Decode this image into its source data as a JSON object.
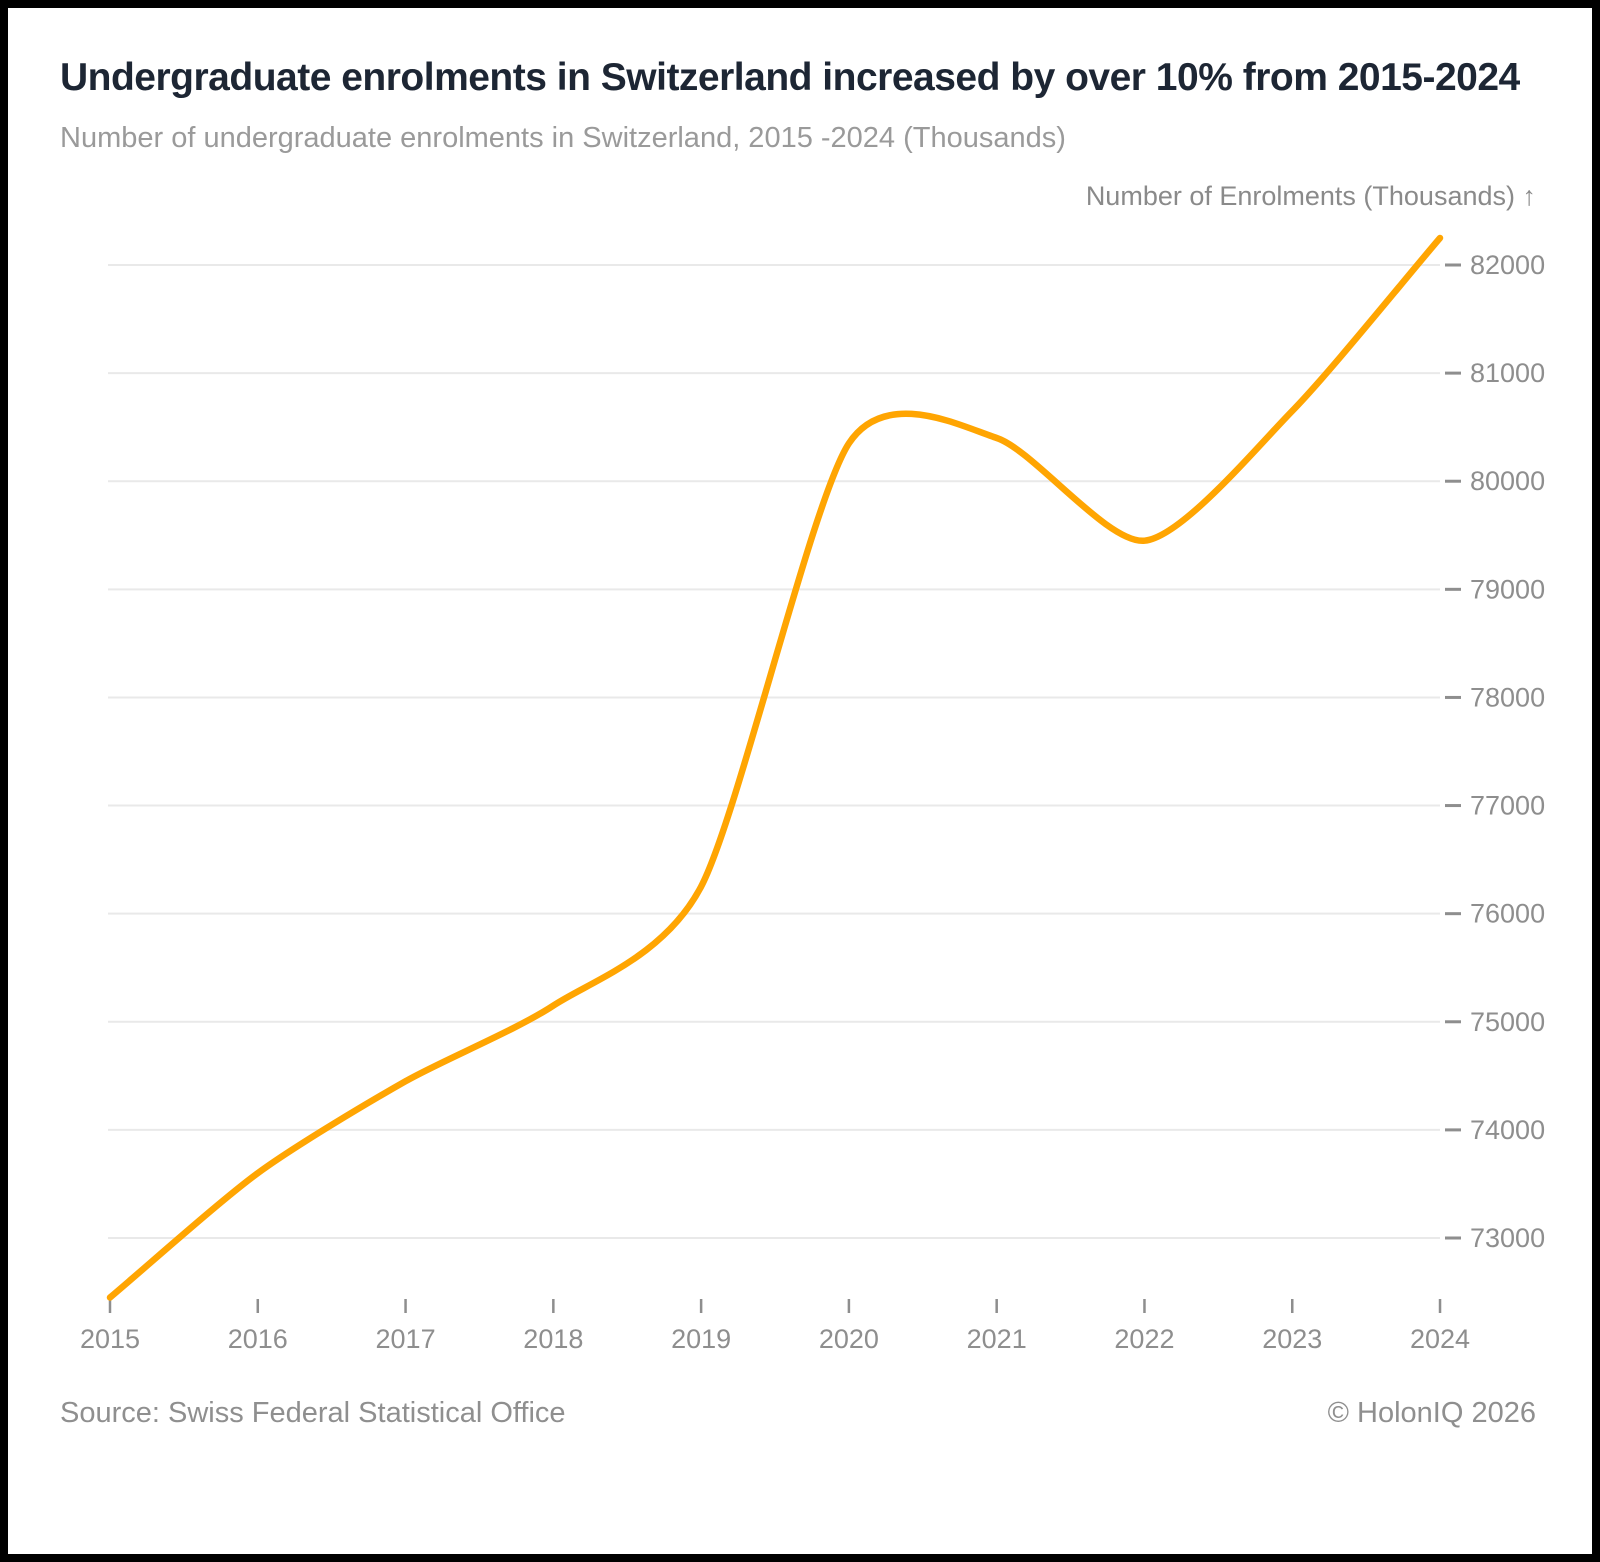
{
  "header": {
    "title": "Undergraduate enrolments in Switzerland increased by over 10% from 2015-2024",
    "subtitle": "Number of undergraduate enrolments in Switzerland, 2015 -2024 (Thousands)"
  },
  "chart_data": {
    "type": "line",
    "title": "Undergraduate enrolments in Switzerland increased by over 10% from 2015-2024",
    "subtitle": "Number of undergraduate enrolments in Switzerland, 2015 -2024 (Thousands)",
    "y_axis_label": "Number of Enrolments (Thousands) ↑",
    "categories": [
      "2015",
      "2016",
      "2017",
      "2018",
      "2019",
      "2020",
      "2021",
      "2022",
      "2023",
      "2024"
    ],
    "series": [
      {
        "name": "Undergraduate enrolments",
        "values": [
          72450,
          73600,
          74450,
          75150,
          76250,
          80350,
          80400,
          79450,
          80650,
          82250
        ]
      }
    ],
    "yticks": [
      82000,
      81000,
      80000,
      79000,
      78000,
      77000,
      76000,
      75000,
      74000,
      73000
    ],
    "ylim": [
      72400,
      82350
    ],
    "grid": "horizontal",
    "legend": "none",
    "colors": {
      "line": "#FFA502",
      "grid": "#e9e9e9",
      "axis_text": "#8e8e8e",
      "title": "#1d2634",
      "subtitle": "#9a9a9a"
    }
  },
  "footer": {
    "source": "Source: Swiss Federal Statistical Office",
    "copyright": "© HolonIQ 2026"
  }
}
